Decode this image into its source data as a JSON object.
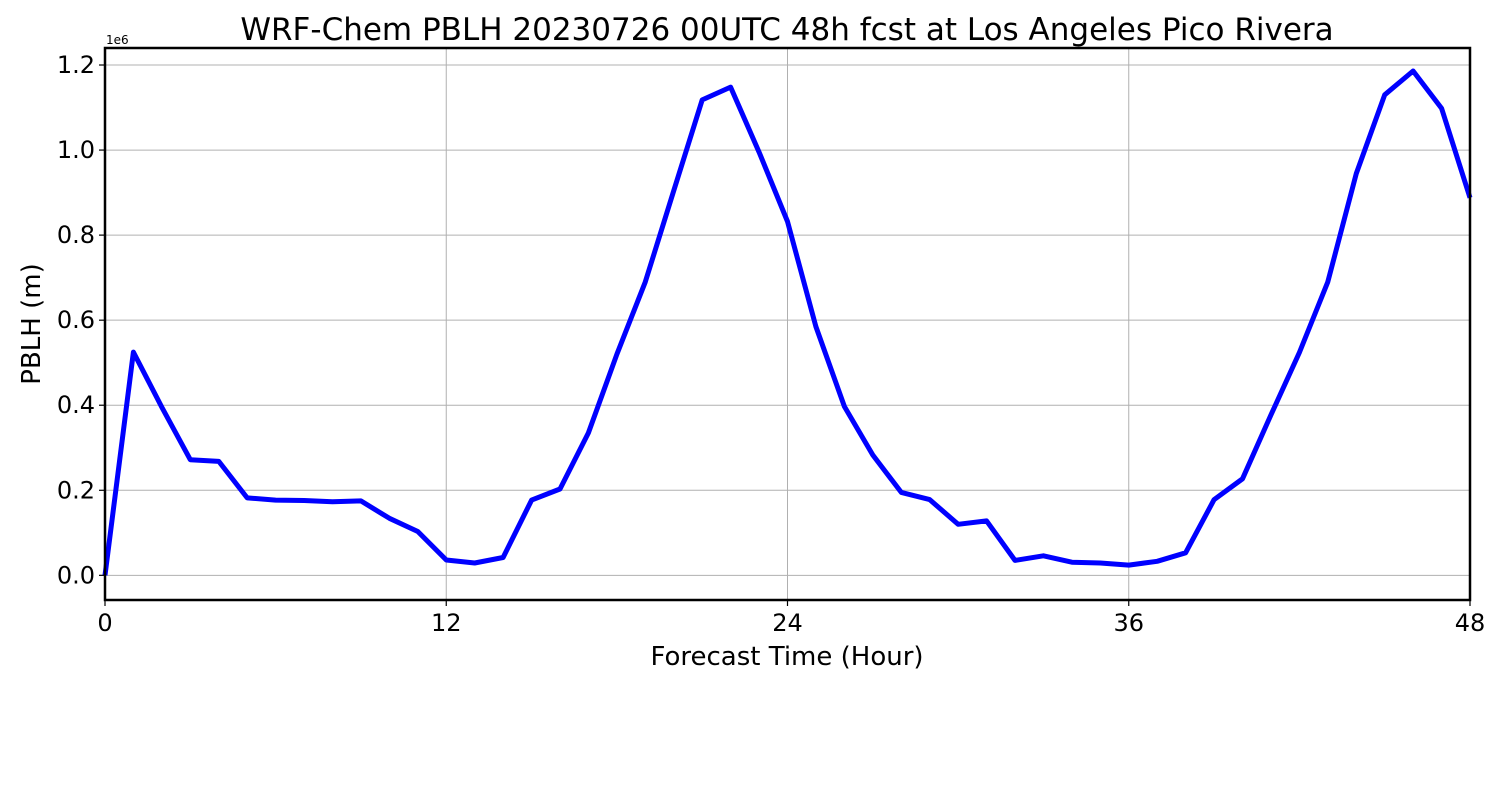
{
  "chart_data": {
    "type": "line",
    "title": "WRF-Chem PBLH  20230726 00UTC 48h fcst at Los Angeles Pico Rivera",
    "xlabel": "Forecast Time (Hour)",
    "ylabel": "PBLH  (m)",
    "y_offset_text": "1e6",
    "xlim": [
      0,
      48
    ],
    "ylim": [
      -58000,
      1240000
    ],
    "x_ticks": [
      0,
      12,
      24,
      36,
      48
    ],
    "x_tick_labels": [
      "0",
      "12",
      "24",
      "36",
      "48"
    ],
    "y_ticks": [
      0,
      200000,
      400000,
      600000,
      800000,
      1000000,
      1200000
    ],
    "y_tick_labels": [
      "0.0",
      "0.2",
      "0.4",
      "0.6",
      "0.8",
      "1.0",
      "1.2"
    ],
    "grid": true,
    "series": [
      {
        "color": "#0000ff",
        "x": [
          0,
          1,
          2,
          3,
          4,
          5,
          6,
          7,
          8,
          9,
          10,
          11,
          12,
          13,
          14,
          15,
          16,
          17,
          18,
          19,
          20,
          21,
          22,
          23,
          24,
          25,
          26,
          27,
          28,
          29,
          30,
          31,
          32,
          33,
          34,
          35,
          36,
          37,
          38,
          39,
          40,
          41,
          42,
          43,
          44,
          45,
          46,
          47,
          48
        ],
        "values": [
          0,
          525000,
          395000,
          272000,
          268000,
          182000,
          177000,
          176000,
          173000,
          175000,
          134000,
          103000,
          36000,
          29000,
          42000,
          177000,
          203000,
          335000,
          520000,
          690000,
          905000,
          1118000,
          1148000,
          995000,
          832000,
          585000,
          397000,
          283000,
          195000,
          178000,
          120000,
          128000,
          35000,
          46000,
          31000,
          29000,
          24000,
          33000,
          53000,
          178000,
          227000,
          377000,
          524000,
          690000,
          945000,
          1130000,
          1186000,
          1098000,
          888000
        ]
      }
    ]
  }
}
